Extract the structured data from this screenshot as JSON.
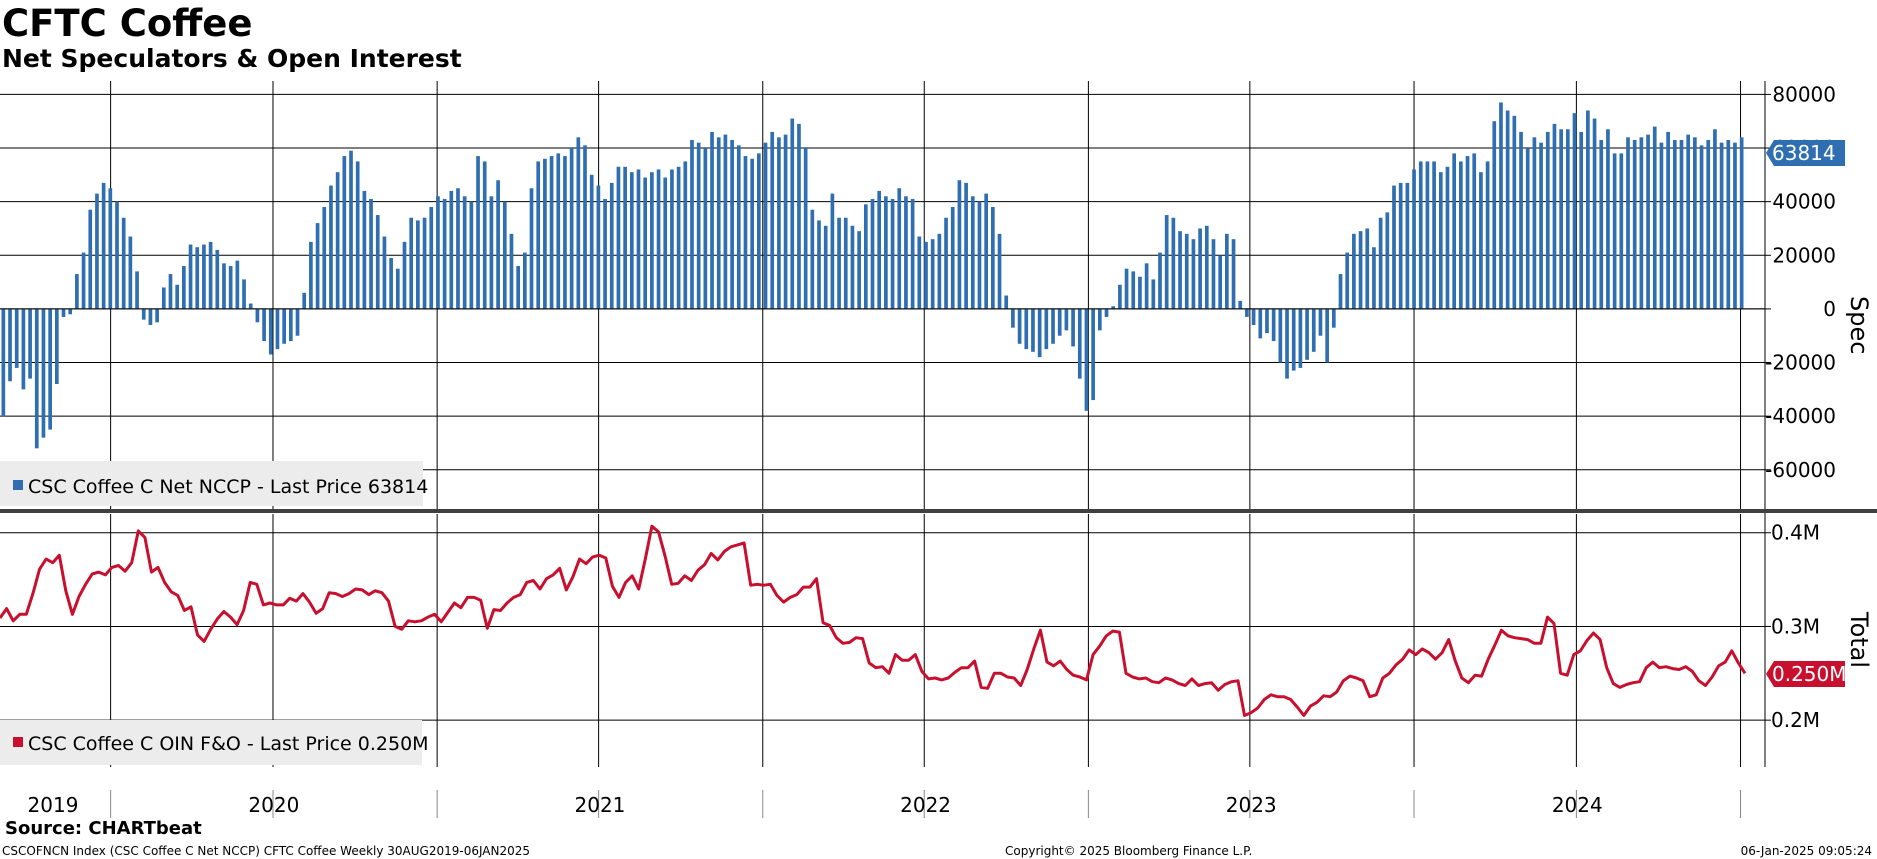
{
  "title": "CFTC Coffee",
  "subtitle": "Net Speculators & Open Interest",
  "source": "Source: CHARTbeat",
  "footer": {
    "left": "CSCOFNCN Index (CSC Coffee C Net NCCP) CFTC Coffee  Weekly 30AUG2019-06JAN2025",
    "center": "Copyright© 2025 Bloomberg Finance L.P.",
    "right": "06-Jan-2025 09:05:24"
  },
  "colors": {
    "spec": "#2f6eb0",
    "total": "#c8102e",
    "divider": "#404040"
  },
  "chart_data": [
    {
      "type": "bar",
      "frequency": "weekly",
      "x_range": [
        "2019-08-30",
        "2025-01-06"
      ],
      "axis_label": "Spec",
      "ylim": [
        -75000,
        85000
      ],
      "y_ticks": [
        80000,
        60000,
        40000,
        20000,
        0,
        -20000,
        -40000,
        -60000
      ],
      "y_tick_labels": [
        "80000",
        "60000",
        "40000",
        "20000",
        "0",
        "-20000",
        "-40000",
        "-60000"
      ],
      "x_labels": [
        "2019",
        "2020",
        "2021",
        "2022",
        "2023",
        "2024"
      ],
      "legend": "CSC Coffee C Net NCCP - Last Price 63814",
      "last_value_label": "63814",
      "series": [
        {
          "name": "CSC Coffee C Net NCCP",
          "values": [
            -40000,
            -27000,
            -22000,
            -30000,
            -26000,
            -52000,
            -48000,
            -45000,
            -28000,
            -3000,
            -2000,
            13000,
            21000,
            37000,
            43000,
            47000,
            45000,
            40000,
            34000,
            27000,
            14000,
            -4000,
            -6000,
            -5000,
            8000,
            13000,
            9000,
            16000,
            24000,
            23000,
            24000,
            25000,
            22000,
            17000,
            16000,
            18000,
            11000,
            2000,
            -5000,
            -12000,
            -17000,
            -15000,
            -13000,
            -12000,
            -10000,
            6000,
            25000,
            32000,
            38000,
            46000,
            51000,
            57000,
            59000,
            55000,
            44000,
            41000,
            35000,
            27000,
            19000,
            15000,
            25000,
            34000,
            33000,
            34000,
            38000,
            42000,
            41000,
            44000,
            45000,
            42000,
            40000,
            57000,
            55000,
            42000,
            48000,
            40000,
            28000,
            16000,
            21000,
            45000,
            55000,
            56000,
            57000,
            58000,
            57000,
            60000,
            64000,
            61000,
            50000,
            46000,
            41000,
            47000,
            53000,
            53000,
            51000,
            52000,
            49000,
            51000,
            52000,
            49000,
            52000,
            53000,
            55000,
            63000,
            62000,
            60000,
            66000,
            64000,
            65000,
            63000,
            61000,
            57000,
            56000,
            58000,
            62000,
            66000,
            64000,
            65000,
            71000,
            69000,
            60000,
            37000,
            33000,
            31000,
            43000,
            34000,
            34000,
            31000,
            29000,
            39000,
            41000,
            44000,
            42000,
            41000,
            45000,
            42000,
            41000,
            27000,
            25000,
            26000,
            28000,
            34000,
            38000,
            48000,
            47000,
            42000,
            40000,
            43000,
            38000,
            28000,
            5000,
            -7000,
            -13000,
            -15000,
            -16000,
            -18000,
            -15000,
            -13000,
            -10000,
            -8000,
            -14000,
            -26000,
            -38000,
            -34000,
            -8000,
            -3000,
            1000,
            9000,
            15000,
            14000,
            12000,
            17000,
            11000,
            21000,
            35000,
            34000,
            29000,
            28000,
            26000,
            30000,
            31000,
            26000,
            20000,
            28000,
            26000,
            3000,
            -3000,
            -6000,
            -11000,
            -9000,
            -12000,
            -20000,
            -26000,
            -23000,
            -22000,
            -19000,
            -16000,
            -10000,
            -20000,
            -7000,
            13000,
            21000,
            28000,
            29000,
            30000,
            23000,
            34000,
            36000,
            46000,
            47000,
            47000,
            52000,
            55000,
            55000,
            55000,
            51000,
            53000,
            58000,
            55000,
            57000,
            58000,
            51000,
            55000,
            70000,
            77000,
            74000,
            72000,
            66000,
            60000,
            64000,
            62000,
            66000,
            69000,
            67000,
            67000,
            73000,
            66000,
            74000,
            71000,
            63000,
            67000,
            58000,
            58000,
            64000,
            63000,
            64000,
            65000,
            68000,
            62000,
            66000,
            63000,
            63000,
            65000,
            64000,
            61000,
            63000,
            67000,
            62000,
            63000,
            62000,
            64000
          ]
        }
      ]
    },
    {
      "type": "line",
      "frequency": "weekly",
      "x_range": [
        "2019-08-30",
        "2025-01-06"
      ],
      "axis_label": "Total",
      "ylim": [
        0.15,
        0.42
      ],
      "y_ticks": [
        0.4,
        0.3,
        0.2
      ],
      "y_tick_labels": [
        "0.4M",
        "0.3M",
        "0.2M"
      ],
      "legend": "CSC Coffee C OIN F&O - Last Price 0.250M",
      "last_value_label": "0.250M",
      "series": [
        {
          "name": "CSC Coffee C OIN F&O",
          "values": [
            0.309,
            0.319,
            0.306,
            0.313,
            0.313,
            0.335,
            0.361,
            0.372,
            0.368,
            0.376,
            0.338,
            0.313,
            0.332,
            0.345,
            0.356,
            0.358,
            0.355,
            0.363,
            0.365,
            0.359,
            0.368,
            0.402,
            0.395,
            0.358,
            0.363,
            0.347,
            0.337,
            0.333,
            0.317,
            0.321,
            0.291,
            0.284,
            0.297,
            0.308,
            0.316,
            0.31,
            0.302,
            0.317,
            0.347,
            0.345,
            0.323,
            0.325,
            0.323,
            0.323,
            0.33,
            0.327,
            0.335,
            0.326,
            0.314,
            0.319,
            0.336,
            0.335,
            0.332,
            0.335,
            0.34,
            0.339,
            0.334,
            0.338,
            0.336,
            0.327,
            0.3,
            0.297,
            0.306,
            0.305,
            0.306,
            0.31,
            0.313,
            0.305,
            0.315,
            0.325,
            0.32,
            0.331,
            0.331,
            0.328,
            0.298,
            0.318,
            0.317,
            0.325,
            0.331,
            0.334,
            0.347,
            0.349,
            0.34,
            0.351,
            0.355,
            0.362,
            0.339,
            0.353,
            0.372,
            0.367,
            0.374,
            0.376,
            0.373,
            0.343,
            0.331,
            0.347,
            0.354,
            0.34,
            0.372,
            0.407,
            0.401,
            0.375,
            0.345,
            0.346,
            0.354,
            0.349,
            0.36,
            0.366,
            0.378,
            0.371,
            0.38,
            0.385,
            0.387,
            0.389,
            0.344,
            0.345,
            0.344,
            0.345,
            0.333,
            0.326,
            0.331,
            0.334,
            0.342,
            0.342,
            0.351,
            0.304,
            0.301,
            0.288,
            0.282,
            0.283,
            0.288,
            0.287,
            0.261,
            0.256,
            0.257,
            0.25,
            0.27,
            0.264,
            0.264,
            0.27,
            0.252,
            0.244,
            0.245,
            0.243,
            0.245,
            0.251,
            0.256,
            0.256,
            0.263,
            0.235,
            0.234,
            0.25,
            0.25,
            0.246,
            0.245,
            0.237,
            0.254,
            0.276,
            0.296,
            0.262,
            0.258,
            0.263,
            0.254,
            0.248,
            0.246,
            0.243,
            0.27,
            0.279,
            0.29,
            0.295,
            0.294,
            0.25,
            0.246,
            0.244,
            0.245,
            0.241,
            0.24,
            0.245,
            0.243,
            0.239,
            0.237,
            0.244,
            0.237,
            0.239,
            0.24,
            0.232,
            0.238,
            0.241,
            0.242,
            0.205,
            0.208,
            0.213,
            0.222,
            0.227,
            0.225,
            0.225,
            0.222,
            0.214,
            0.205,
            0.215,
            0.219,
            0.226,
            0.225,
            0.23,
            0.242,
            0.247,
            0.245,
            0.242,
            0.225,
            0.227,
            0.245,
            0.25,
            0.259,
            0.265,
            0.275,
            0.27,
            0.276,
            0.272,
            0.265,
            0.272,
            0.286,
            0.263,
            0.245,
            0.24,
            0.248,
            0.247,
            0.265,
            0.28,
            0.296,
            0.29,
            0.288,
            0.287,
            0.286,
            0.282,
            0.282,
            0.31,
            0.303,
            0.25,
            0.248,
            0.27,
            0.274,
            0.285,
            0.293,
            0.286,
            0.256,
            0.239,
            0.235,
            0.238,
            0.24,
            0.241,
            0.256,
            0.262,
            0.256,
            0.257,
            0.255,
            0.254,
            0.257,
            0.252,
            0.242,
            0.237,
            0.246,
            0.258,
            0.262,
            0.274,
            0.261,
            0.25
          ]
        }
      ]
    }
  ]
}
